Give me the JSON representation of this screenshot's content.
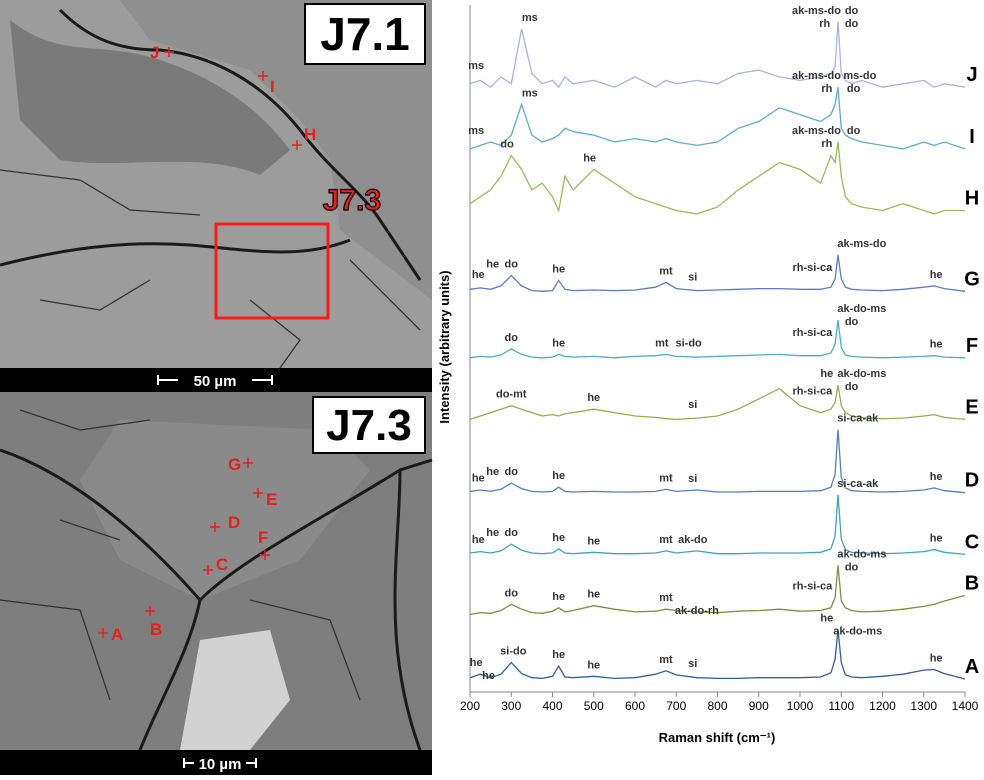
{
  "micrographs": [
    {
      "title": "J7.1",
      "scale_bar": "50 µm",
      "inset_label": "J7.3",
      "points": [
        "J",
        "I",
        "H"
      ]
    },
    {
      "title": "J7.3",
      "scale_bar": "10 µm",
      "points": [
        "G",
        "E",
        "D",
        "F",
        "C",
        "A",
        "B"
      ]
    }
  ],
  "chart_data": {
    "type": "line",
    "xlabel": "Raman shift (cm⁻¹)",
    "ylabel": "Intensity (arbitrary units)",
    "xlim": [
      200,
      1400
    ],
    "xticks": [
      200,
      300,
      400,
      500,
      600,
      700,
      800,
      900,
      1000,
      1100,
      1200,
      1300,
      1400
    ],
    "ylim": [
      0,
      100
    ],
    "x": [
      200,
      225,
      250,
      275,
      300,
      325,
      350,
      375,
      400,
      415,
      430,
      450,
      500,
      550,
      600,
      650,
      675,
      700,
      750,
      800,
      850,
      900,
      950,
      1000,
      1050,
      1075,
      1085,
      1092,
      1100,
      1110,
      1125,
      1150,
      1200,
      1250,
      1300,
      1325,
      1350,
      1400
    ],
    "series": [
      {
        "name": "J",
        "color": "#a9b5d8",
        "values": [
          88.5,
          89,
          88,
          89.5,
          88.5,
          96.5,
          90,
          88.5,
          89,
          88,
          89.5,
          88.5,
          89,
          88,
          89.5,
          88,
          89,
          88.5,
          89,
          88.5,
          90,
          90.5,
          89.5,
          89,
          89.5,
          90,
          91,
          97.5,
          90,
          89,
          88.5,
          89,
          88,
          88.5,
          89,
          88,
          88.5,
          88
        ],
        "labels": [
          {
            "text": "ms",
            "x": 215
          },
          {
            "text": "ms",
            "x": 345
          },
          {
            "text": "ak-ms-do",
            "x": 1040
          },
          {
            "text": "rh",
            "x": 1060
          },
          {
            "text": "do",
            "x": 1125
          },
          {
            "text": "do",
            "x": 1125
          }
        ]
      },
      {
        "name": "I",
        "color": "#5aafcf",
        "values": [
          79,
          79.5,
          80,
          79.5,
          81,
          85.5,
          81,
          80,
          80.5,
          81,
          82,
          81.5,
          81,
          80,
          80.5,
          80,
          80.5,
          80,
          79.5,
          80,
          82,
          83,
          85,
          84,
          83,
          84,
          85.5,
          88,
          82,
          81,
          80.5,
          80,
          79.5,
          79,
          80,
          79.5,
          80,
          79
        ],
        "labels": [
          {
            "text": "ms",
            "x": 215
          },
          {
            "text": "ms",
            "x": 345
          },
          {
            "text": "ak-ms-do",
            "x": 1040
          },
          {
            "text": "rh",
            "x": 1065
          },
          {
            "text": "ms-do",
            "x": 1145
          },
          {
            "text": "do",
            "x": 1130
          }
        ]
      },
      {
        "name": "H",
        "color": "#9bbb59",
        "values": [
          71,
          72,
          73,
          75,
          78,
          76,
          73,
          74,
          72,
          70,
          75,
          73,
          76,
          74,
          72,
          71,
          70.5,
          70,
          69.5,
          70.5,
          73,
          75,
          77,
          76,
          74,
          78,
          77,
          80,
          75,
          72,
          71,
          70.5,
          70,
          71,
          70,
          69.5,
          70,
          70
        ],
        "labels": [
          {
            "text": "do",
            "x": 290
          },
          {
            "text": "he",
            "x": 490
          },
          {
            "text": "ak-ms-do",
            "x": 1040
          },
          {
            "text": "rh",
            "x": 1065
          },
          {
            "text": "do",
            "x": 1130
          }
        ]
      },
      {
        "name": "G",
        "color": "#5b7cc4",
        "values": [
          58.5,
          58.7,
          58.5,
          59,
          60.5,
          59,
          58.3,
          58.2,
          58.3,
          59.8,
          58.5,
          58.3,
          58.4,
          58.3,
          58.4,
          58.8,
          59.5,
          58.6,
          58.3,
          58.4,
          58.5,
          58.6,
          58.6,
          58.5,
          58.5,
          58.8,
          60,
          63.5,
          60,
          58.8,
          58.5,
          58.4,
          58.3,
          58.5,
          58.8,
          59,
          58.6,
          58.2
        ],
        "labels": [
          {
            "text": "he",
            "x": 220
          },
          {
            "text": "he",
            "x": 255
          },
          {
            "text": "do",
            "x": 300
          },
          {
            "text": "he",
            "x": 415
          },
          {
            "text": "mt",
            "x": 675
          },
          {
            "text": "si",
            "x": 740
          },
          {
            "text": "rh-si-ca",
            "x": 1030
          },
          {
            "text": "ak-ms-do",
            "x": 1150
          },
          {
            "text": "he",
            "x": 1330
          }
        ]
      },
      {
        "name": "F",
        "color": "#4bacc6",
        "values": [
          48.5,
          48.7,
          48.6,
          48.9,
          49.8,
          49,
          48.6,
          48.5,
          48.6,
          49,
          48.7,
          48.6,
          48.7,
          48.5,
          48.7,
          48.8,
          49,
          48.7,
          48.6,
          48.7,
          48.8,
          48.9,
          49,
          48.8,
          48.8,
          49.2,
          50.5,
          54,
          50,
          48.9,
          48.7,
          48.6,
          48.5,
          48.6,
          48.7,
          48.8,
          48.6,
          48.5
        ],
        "labels": [
          {
            "text": "do",
            "x": 300
          },
          {
            "text": "he",
            "x": 415
          },
          {
            "text": "mt",
            "x": 665
          },
          {
            "text": "si-do",
            "x": 730
          },
          {
            "text": "rh-si-ca",
            "x": 1030
          },
          {
            "text": "ak-do-ms",
            "x": 1150
          },
          {
            "text": "do",
            "x": 1125
          },
          {
            "text": "he",
            "x": 1330
          }
        ]
      },
      {
        "name": "E",
        "color": "#8fb04b",
        "values": [
          39.5,
          40,
          40.5,
          41,
          41.5,
          41,
          40.5,
          40,
          40.2,
          40,
          40.3,
          40.5,
          41,
          40.5,
          40,
          39.8,
          39.6,
          39.5,
          39.7,
          40,
          41,
          42.5,
          44,
          41.5,
          40.5,
          41,
          42,
          44.5,
          41.5,
          40.5,
          40,
          39.8,
          39.6,
          39.7,
          40,
          40.2,
          39.8,
          39.5
        ],
        "labels": [
          {
            "text": "do-mt",
            "x": 300
          },
          {
            "text": "he",
            "x": 500
          },
          {
            "text": "si",
            "x": 740
          },
          {
            "text": "rh-si-ca",
            "x": 1030
          },
          {
            "text": "ak-do-ms",
            "x": 1150
          },
          {
            "text": "do",
            "x": 1125
          },
          {
            "text": "he",
            "x": 1065
          }
        ]
      },
      {
        "name": "D",
        "color": "#4f81bd",
        "values": [
          29,
          29.2,
          29,
          29.3,
          30.2,
          29.4,
          29,
          28.9,
          29,
          29.6,
          29,
          28.9,
          29,
          28.9,
          28.9,
          29,
          29.3,
          29,
          29.2,
          28.9,
          28.9,
          29,
          29,
          29,
          29.1,
          29.6,
          31.5,
          38,
          31,
          29.5,
          29.1,
          29,
          28.9,
          29,
          29.2,
          29.5,
          29.1,
          28.8
        ],
        "labels": [
          {
            "text": "he",
            "x": 220
          },
          {
            "text": "he",
            "x": 255
          },
          {
            "text": "do",
            "x": 300
          },
          {
            "text": "he",
            "x": 415
          },
          {
            "text": "mt",
            "x": 675
          },
          {
            "text": "si",
            "x": 740
          },
          {
            "text": "si-ca-ak",
            "x": 1140
          },
          {
            "text": "he",
            "x": 1330
          }
        ]
      },
      {
        "name": "C",
        "color": "#3fa3bd",
        "values": [
          20,
          20.2,
          20,
          20.3,
          21.3,
          20.4,
          20,
          19.9,
          20,
          20.6,
          20,
          19.9,
          20.1,
          19.9,
          19.9,
          20,
          20.3,
          20,
          20.3,
          19.9,
          19.9,
          20,
          20,
          20,
          20.1,
          20.6,
          22.5,
          28.5,
          22,
          20.5,
          20.1,
          20,
          19.9,
          20,
          20.2,
          20.5,
          20.1,
          19.8
        ],
        "labels": [
          {
            "text": "he",
            "x": 220
          },
          {
            "text": "he",
            "x": 255
          },
          {
            "text": "do",
            "x": 300
          },
          {
            "text": "he",
            "x": 415
          },
          {
            "text": "he",
            "x": 500
          },
          {
            "text": "mt",
            "x": 675
          },
          {
            "text": "ak-do",
            "x": 740
          },
          {
            "text": "si-ca-ak",
            "x": 1140
          },
          {
            "text": "he",
            "x": 1330
          }
        ]
      },
      {
        "name": "B",
        "color": "#77933c",
        "values": [
          11,
          11.3,
          11.2,
          11.6,
          12.5,
          11.8,
          11.3,
          11.2,
          11.5,
          12,
          11.4,
          11.6,
          12.3,
          11.8,
          11.4,
          11.5,
          11.8,
          11.6,
          11.4,
          11.3,
          11.5,
          11.6,
          11.8,
          11.5,
          11.6,
          12,
          13.5,
          18.2,
          13,
          12,
          11.6,
          11.4,
          11.5,
          11.8,
          12.2,
          12.5,
          13,
          13.8
        ],
        "labels": [
          {
            "text": "do",
            "x": 300
          },
          {
            "text": "he",
            "x": 415
          },
          {
            "text": "he",
            "x": 500
          },
          {
            "text": "mt",
            "x": 675
          },
          {
            "text": "ak-do-rh",
            "x": 750
          },
          {
            "text": "rh-si-ca",
            "x": 1030
          },
          {
            "text": "ak-do-ms",
            "x": 1150
          },
          {
            "text": "do",
            "x": 1125
          }
        ]
      },
      {
        "name": "A",
        "color": "#2e5fa0",
        "values": [
          1.8,
          2.3,
          1.8,
          2.3,
          4,
          2.4,
          1.8,
          1.7,
          2,
          3.5,
          1.9,
          1.8,
          2,
          1.7,
          1.8,
          2.3,
          2.8,
          2.2,
          1.8,
          1.7,
          1.7,
          1.8,
          1.8,
          1.8,
          1.9,
          2.5,
          4.5,
          8.8,
          4,
          2.2,
          1.9,
          1.8,
          2,
          2.3,
          2.9,
          3,
          2.4,
          1.6
        ],
        "labels": [
          {
            "text": "he",
            "x": 215
          },
          {
            "text": "he",
            "x": 245
          },
          {
            "text": "si-do",
            "x": 305
          },
          {
            "text": "he",
            "x": 415
          },
          {
            "text": "he",
            "x": 500
          },
          {
            "text": "mt",
            "x": 675
          },
          {
            "text": "si",
            "x": 740
          },
          {
            "text": "he",
            "x": 1065
          },
          {
            "text": "ak-do-ms",
            "x": 1140
          },
          {
            "text": "he",
            "x": 1330
          }
        ]
      }
    ]
  }
}
